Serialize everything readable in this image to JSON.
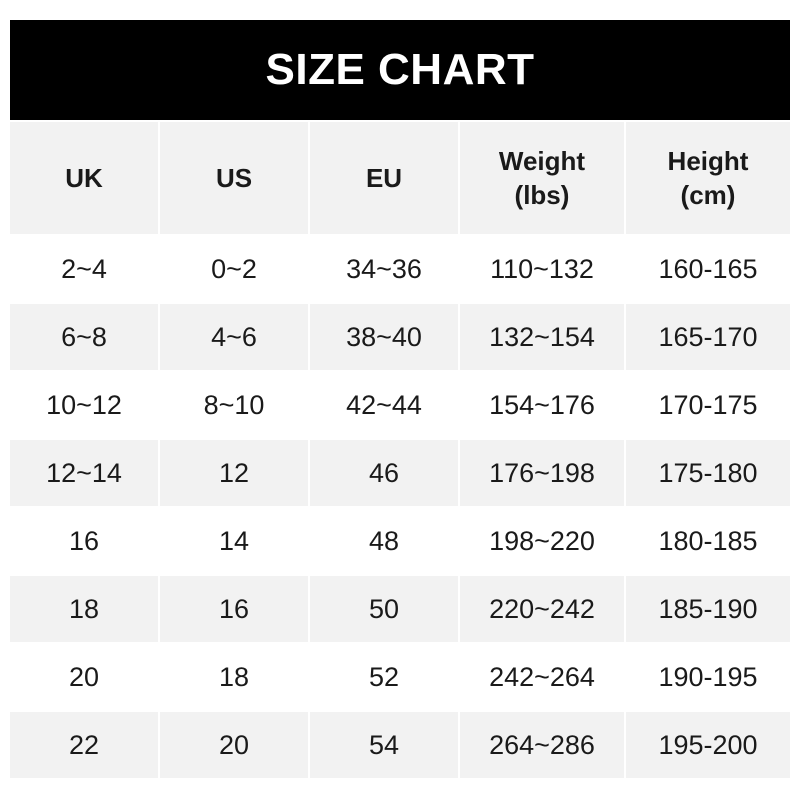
{
  "title": "SIZE CHART",
  "headers": [
    "UK",
    "US",
    "EU",
    "Weight\n(lbs)",
    "Height\n(cm)"
  ],
  "rows": [
    [
      "2~4",
      "0~2",
      "34~36",
      "110~132",
      "160-165"
    ],
    [
      "6~8",
      "4~6",
      "38~40",
      "132~154",
      "165-170"
    ],
    [
      "10~12",
      "8~10",
      "42~44",
      "154~176",
      "170-175"
    ],
    [
      "12~14",
      "12",
      "46",
      "176~198",
      "175-180"
    ],
    [
      "16",
      "14",
      "48",
      "198~220",
      "180-185"
    ],
    [
      "18",
      "16",
      "50",
      "220~242",
      "185-190"
    ],
    [
      "20",
      "18",
      "52",
      "242~264",
      "190-195"
    ],
    [
      "22",
      "20",
      "54",
      "264~286",
      "195-200"
    ]
  ],
  "colors": {
    "title_bg": "#000000",
    "stripe": "#f2f2f2"
  }
}
